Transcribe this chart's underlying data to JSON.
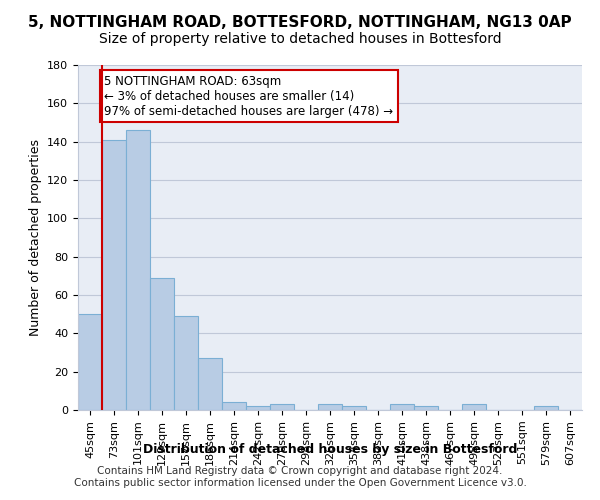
{
  "title_line1": "5, NOTTINGHAM ROAD, BOTTESFORD, NOTTINGHAM, NG13 0AP",
  "title_line2": "Size of property relative to detached houses in Bottesford",
  "xlabel": "Distribution of detached houses by size in Bottesford",
  "ylabel": "Number of detached properties",
  "categories": [
    "45sqm",
    "73sqm",
    "101sqm",
    "129sqm",
    "157sqm",
    "186sqm",
    "214sqm",
    "242sqm",
    "270sqm",
    "298sqm",
    "326sqm",
    "354sqm",
    "382sqm",
    "410sqm",
    "438sqm",
    "467sqm",
    "495sqm",
    "523sqm",
    "551sqm",
    "579sqm",
    "607sqm"
  ],
  "values": [
    50,
    141,
    146,
    69,
    49,
    27,
    4,
    2,
    3,
    0,
    3,
    2,
    0,
    3,
    2,
    0,
    3,
    0,
    0,
    2,
    0
  ],
  "bar_color": "#b8cce4",
  "bar_edge_color": "#7bafd4",
  "grid_color": "#c0c8d8",
  "background_color": "#e8edf5",
  "annotation_box_text": "5 NOTTINGHAM ROAD: 63sqm\n← 3% of detached houses are smaller (14)\n97% of semi-detached houses are larger (478) →",
  "annotation_box_color": "#ffffff",
  "annotation_box_edge_color": "#cc0000",
  "vline_x": 0,
  "vline_color": "#cc0000",
  "ylim": [
    0,
    180
  ],
  "yticks": [
    0,
    20,
    40,
    60,
    80,
    100,
    120,
    140,
    160,
    180
  ],
  "footer_line1": "Contains HM Land Registry data © Crown copyright and database right 2024.",
  "footer_line2": "Contains public sector information licensed under the Open Government Licence v3.0.",
  "title_fontsize": 11,
  "subtitle_fontsize": 10,
  "axis_label_fontsize": 9,
  "tick_fontsize": 8,
  "annotation_fontsize": 8.5,
  "footer_fontsize": 7.5
}
